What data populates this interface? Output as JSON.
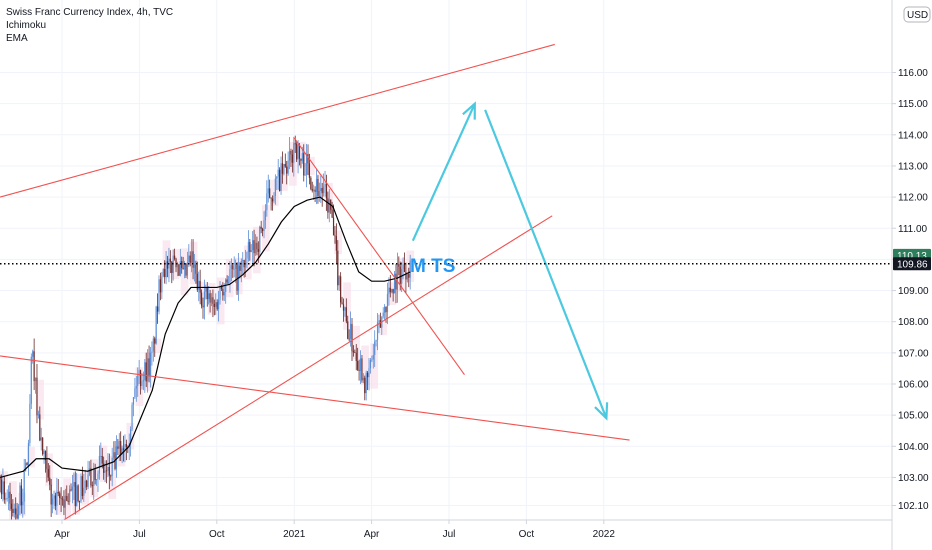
{
  "legend": {
    "symbol": "Swiss Franc Currency Index, 4h, TVC",
    "ind1": "Ichimoku",
    "ind2": "EMA"
  },
  "currency": "USD",
  "annotation": "M TS",
  "colors": {
    "trendline": "#ef5350",
    "arrow": "#4cc9e0",
    "candle_up": "#5b8ed6",
    "candle_down": "#6b2a2a",
    "ema": "#000000",
    "cloud": "#f7d7e5",
    "price_green": "#2e7d5b",
    "price_black": "#131722"
  },
  "chart_data": {
    "type": "candlestick",
    "title": "Swiss Franc Currency Index, 4h, TVC",
    "price_axis": {
      "ylim": [
        101.55,
        117.0
      ],
      "ticks": [
        "116.00",
        "115.00",
        "114.00",
        "113.00",
        "112.00",
        "111.00",
        "110.00",
        "109.00",
        "108.00",
        "107.00",
        "106.00",
        "105.00",
        "104.00",
        "103.00",
        "102.10"
      ],
      "last_labels": [
        {
          "value": 110.13,
          "text": "110.13",
          "style": "green"
        },
        {
          "value": 109.86,
          "text": "109.86",
          "style": "black"
        }
      ]
    },
    "time_axis": {
      "ticks": [
        "Apr",
        "Jul",
        "Oct",
        "2021",
        "Apr",
        "Jul",
        "Oct",
        "2022"
      ],
      "positions_t": [
        0,
        3,
        6,
        9,
        12,
        15,
        18,
        21
      ]
    },
    "time_unit": "months since Apr 2020",
    "price_path": [
      [
        -2.4,
        103.0
      ],
      [
        -2.2,
        102.5
      ],
      [
        -2.0,
        102.0
      ],
      [
        -1.8,
        101.9
      ],
      [
        -1.5,
        102.6
      ],
      [
        -1.3,
        104.0
      ],
      [
        -1.2,
        106.5
      ],
      [
        -1.1,
        106.8
      ],
      [
        -1.0,
        105.5
      ],
      [
        -0.8,
        104.0
      ],
      [
        -0.6,
        103.0
      ],
      [
        -0.4,
        102.3
      ],
      [
        -0.2,
        102.1
      ],
      [
        0.0,
        102.3
      ],
      [
        0.5,
        102.5
      ],
      [
        1.0,
        102.8
      ],
      [
        1.4,
        103.5
      ],
      [
        1.8,
        103.0
      ],
      [
        2.2,
        103.8
      ],
      [
        2.6,
        104.5
      ],
      [
        2.9,
        106.2
      ],
      [
        3.2,
        106.4
      ],
      [
        3.5,
        106.8
      ],
      [
        3.7,
        108.5
      ],
      [
        3.9,
        110.0
      ],
      [
        4.1,
        109.5
      ],
      [
        4.4,
        110.2
      ],
      [
        4.7,
        109.3
      ],
      [
        5.0,
        110.0
      ],
      [
        5.3,
        109.0
      ],
      [
        5.6,
        108.8
      ],
      [
        5.9,
        108.4
      ],
      [
        6.2,
        109.2
      ],
      [
        6.5,
        109.6
      ],
      [
        6.8,
        109.4
      ],
      [
        7.1,
        110.0
      ],
      [
        7.4,
        110.3
      ],
      [
        7.7,
        110.8
      ],
      [
        8.0,
        112.0
      ],
      [
        8.3,
        112.4
      ],
      [
        8.6,
        112.8
      ],
      [
        8.9,
        113.2
      ],
      [
        9.0,
        113.9
      ],
      [
        9.2,
        113.2
      ],
      [
        9.5,
        113.0
      ],
      [
        9.8,
        112.4
      ],
      [
        10.1,
        112.2
      ],
      [
        10.4,
        111.6
      ],
      [
        10.7,
        109.5
      ],
      [
        11.0,
        108.0
      ],
      [
        11.3,
        107.2
      ],
      [
        11.6,
        106.6
      ],
      [
        11.8,
        105.9
      ],
      [
        12.0,
        106.8
      ],
      [
        12.3,
        107.8
      ],
      [
        12.6,
        108.8
      ],
      [
        12.9,
        109.4
      ],
      [
        13.2,
        109.7
      ],
      [
        13.5,
        109.86
      ]
    ],
    "ema_path": [
      [
        -2.4,
        103.0
      ],
      [
        -1.5,
        103.2
      ],
      [
        -1.0,
        103.6
      ],
      [
        -0.5,
        103.6
      ],
      [
        0.0,
        103.3
      ],
      [
        1.0,
        103.2
      ],
      [
        2.0,
        103.5
      ],
      [
        2.6,
        104.0
      ],
      [
        3.0,
        104.8
      ],
      [
        3.5,
        105.8
      ],
      [
        4.0,
        107.6
      ],
      [
        4.5,
        108.6
      ],
      [
        5.0,
        109.1
      ],
      [
        5.5,
        109.1
      ],
      [
        6.0,
        109.1
      ],
      [
        6.5,
        109.2
      ],
      [
        7.0,
        109.5
      ],
      [
        7.5,
        109.9
      ],
      [
        8.0,
        110.5
      ],
      [
        8.5,
        111.2
      ],
      [
        9.0,
        111.7
      ],
      [
        9.5,
        111.9
      ],
      [
        10.0,
        112.0
      ],
      [
        10.5,
        111.7
      ],
      [
        11.0,
        110.6
      ],
      [
        11.5,
        109.6
      ],
      [
        12.0,
        109.3
      ],
      [
        12.5,
        109.3
      ],
      [
        13.0,
        109.4
      ],
      [
        13.5,
        109.6
      ]
    ],
    "trendlines": [
      {
        "name": "upper-channel",
        "from": [
          -2.4,
          112.0
        ],
        "to": [
          19.1,
          116.9
        ]
      },
      {
        "name": "lower-support",
        "from": [
          -2.4,
          106.9
        ],
        "to": [
          22.0,
          104.2
        ]
      },
      {
        "name": "rising-support",
        "from": [
          0.0,
          101.6
        ],
        "to": [
          19.0,
          111.4
        ]
      },
      {
        "name": "falling-resistance",
        "from": [
          9.0,
          113.9
        ],
        "to": [
          15.6,
          106.3
        ]
      }
    ],
    "projection": [
      {
        "name": "arrow-up",
        "from": [
          13.6,
          110.6
        ],
        "to": [
          16.0,
          115.0
        ]
      },
      {
        "name": "arrow-down",
        "from": [
          16.4,
          114.8
        ],
        "to": [
          21.1,
          104.9
        ]
      }
    ],
    "current_price": 109.86
  }
}
